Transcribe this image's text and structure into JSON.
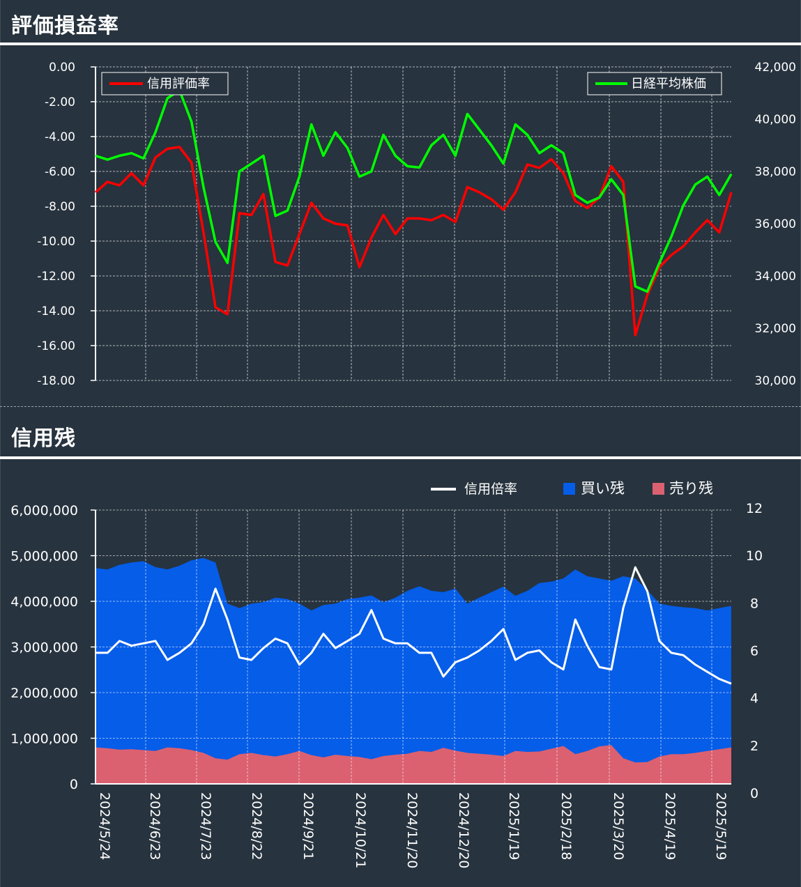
{
  "sections": {
    "top_title": "評価損益率",
    "bottom_title": "信用残"
  },
  "colors": {
    "background": "#27333e",
    "grid": "#ffffff",
    "credit_eval_line": "#ff0000",
    "nikkei_line": "#00ff00",
    "buy_area": "#055de8",
    "sell_area": "#db6170",
    "ratio_line": "#ffffff"
  },
  "chart_data": [
    {
      "type": "line",
      "title": "評価損益率",
      "legend": [
        {
          "name": "信用評価率",
          "placement": "top-left"
        },
        {
          "name": "日経平均株価",
          "placement": "top-right"
        }
      ],
      "y_left": {
        "ylim": [
          -18,
          0
        ],
        "ticks": [
          "0.00",
          "-2.00",
          "-4.00",
          "-6.00",
          "-8.00",
          "-10.00",
          "-12.00",
          "-14.00",
          "-16.00",
          "-18.00"
        ]
      },
      "y_right": {
        "ylim": [
          30000,
          42000
        ],
        "ticks": [
          "42,000",
          "40,000",
          "38,000",
          "36,000",
          "34,000",
          "32,000",
          "30,000"
        ]
      },
      "grid": true,
      "series": [
        {
          "name": "信用評価率",
          "axis": "left",
          "values": [
            -7.2,
            -6.6,
            -6.8,
            -6.1,
            -6.8,
            -5.2,
            -4.7,
            -4.6,
            -5.5,
            -9.5,
            -13.8,
            -14.2,
            -8.4,
            -8.5,
            -7.3,
            -11.2,
            -11.4,
            -9.6,
            -7.8,
            -8.7,
            -9.0,
            -9.1,
            -11.5,
            -9.8,
            -8.5,
            -9.6,
            -8.7,
            -8.7,
            -8.8,
            -8.5,
            -8.9,
            -6.9,
            -7.2,
            -7.6,
            -8.2,
            -7.2,
            -5.6,
            -5.8,
            -5.3,
            -6.1,
            -7.7,
            -8.1,
            -7.5,
            -5.7,
            -6.6,
            -15.4,
            -13.1,
            -11.5,
            -10.8,
            -10.3,
            -9.5,
            -8.8,
            -9.5,
            -7.2
          ]
        },
        {
          "name": "日経平均株価",
          "axis": "right",
          "values": [
            38600,
            38450,
            38600,
            38700,
            38500,
            39500,
            40800,
            41100,
            39900,
            37400,
            35300,
            34500,
            38000,
            38300,
            38600,
            36300,
            36500,
            37800,
            39800,
            38600,
            39500,
            38900,
            37800,
            38000,
            39400,
            38600,
            38200,
            38150,
            39000,
            39400,
            38600,
            40200,
            39600,
            39000,
            38300,
            39800,
            39400,
            38700,
            39000,
            38700,
            37100,
            36800,
            37000,
            37700,
            37100,
            33600,
            33400,
            34500,
            35500,
            36700,
            37500,
            37800,
            37100,
            37900
          ]
        }
      ]
    },
    {
      "type": "area",
      "title": "信用残",
      "x_ticks": [
        "2024/5/24",
        "2024/6/23",
        "2024/7/23",
        "2024/8/22",
        "2024/9/21",
        "2024/10/21",
        "2024/11/20",
        "2024/12/20",
        "2025/1/19",
        "2025/2/18",
        "2025/3/20",
        "2025/4/19",
        "2025/5/19"
      ],
      "legend": [
        {
          "name": "信用倍率",
          "placement": "top-right"
        },
        {
          "name": "買い残",
          "placement": "top-right"
        },
        {
          "name": "売り残",
          "placement": "top-right"
        }
      ],
      "y_left": {
        "ylim": [
          0,
          6000000
        ],
        "ticks": [
          "6,000,000",
          "5,000,000",
          "4,000,000",
          "3,000,000",
          "2,000,000",
          "1,000,000",
          "0"
        ]
      },
      "y_right": {
        "ylim": [
          0,
          12
        ],
        "ticks": [
          "12",
          "10",
          "8",
          "6",
          "4",
          "2",
          "0"
        ]
      },
      "grid": true,
      "series": [
        {
          "name": "買い残",
          "axis": "left",
          "values": [
            4730000,
            4700000,
            4800000,
            4850000,
            4880000,
            4750000,
            4700000,
            4780000,
            4900000,
            4950000,
            4850000,
            3950000,
            3850000,
            3950000,
            3980000,
            4080000,
            4050000,
            3950000,
            3800000,
            3920000,
            3950000,
            4050000,
            4080000,
            4130000,
            3980000,
            4080000,
            4230000,
            4330000,
            4230000,
            4200000,
            4280000,
            3950000,
            4080000,
            4200000,
            4320000,
            4120000,
            4230000,
            4400000,
            4430000,
            4500000,
            4700000,
            4550000,
            4500000,
            4450000,
            4550000,
            4500000,
            4250000,
            3950000,
            3900000,
            3870000,
            3850000,
            3800000,
            3850000,
            3900000
          ]
        },
        {
          "name": "売り残",
          "axis": "left",
          "values": [
            800000,
            780000,
            750000,
            760000,
            740000,
            720000,
            800000,
            780000,
            740000,
            680000,
            560000,
            530000,
            650000,
            680000,
            630000,
            600000,
            650000,
            720000,
            630000,
            580000,
            640000,
            610000,
            590000,
            540000,
            610000,
            640000,
            660000,
            720000,
            700000,
            790000,
            730000,
            680000,
            660000,
            640000,
            610000,
            720000,
            700000,
            710000,
            770000,
            830000,
            650000,
            720000,
            820000,
            850000,
            560000,
            470000,
            480000,
            600000,
            650000,
            650000,
            680000,
            720000,
            760000,
            800000
          ]
        },
        {
          "name": "信用倍率",
          "axis": "right",
          "values": [
            5.9,
            5.9,
            6.4,
            6.2,
            6.3,
            6.4,
            5.6,
            5.9,
            6.3,
            7.1,
            8.6,
            7.3,
            5.7,
            5.6,
            6.1,
            6.5,
            6.3,
            5.4,
            5.9,
            6.7,
            6.1,
            6.4,
            6.7,
            7.7,
            6.5,
            6.3,
            6.3,
            5.9,
            5.9,
            4.9,
            5.5,
            5.7,
            6.0,
            6.4,
            6.9,
            5.6,
            5.9,
            6.0,
            5.5,
            5.2,
            7.3,
            6.2,
            5.3,
            5.2,
            7.8,
            9.5,
            8.5,
            6.4,
            5.9,
            5.8,
            5.4,
            5.1,
            4.8,
            4.6
          ]
        }
      ]
    }
  ]
}
